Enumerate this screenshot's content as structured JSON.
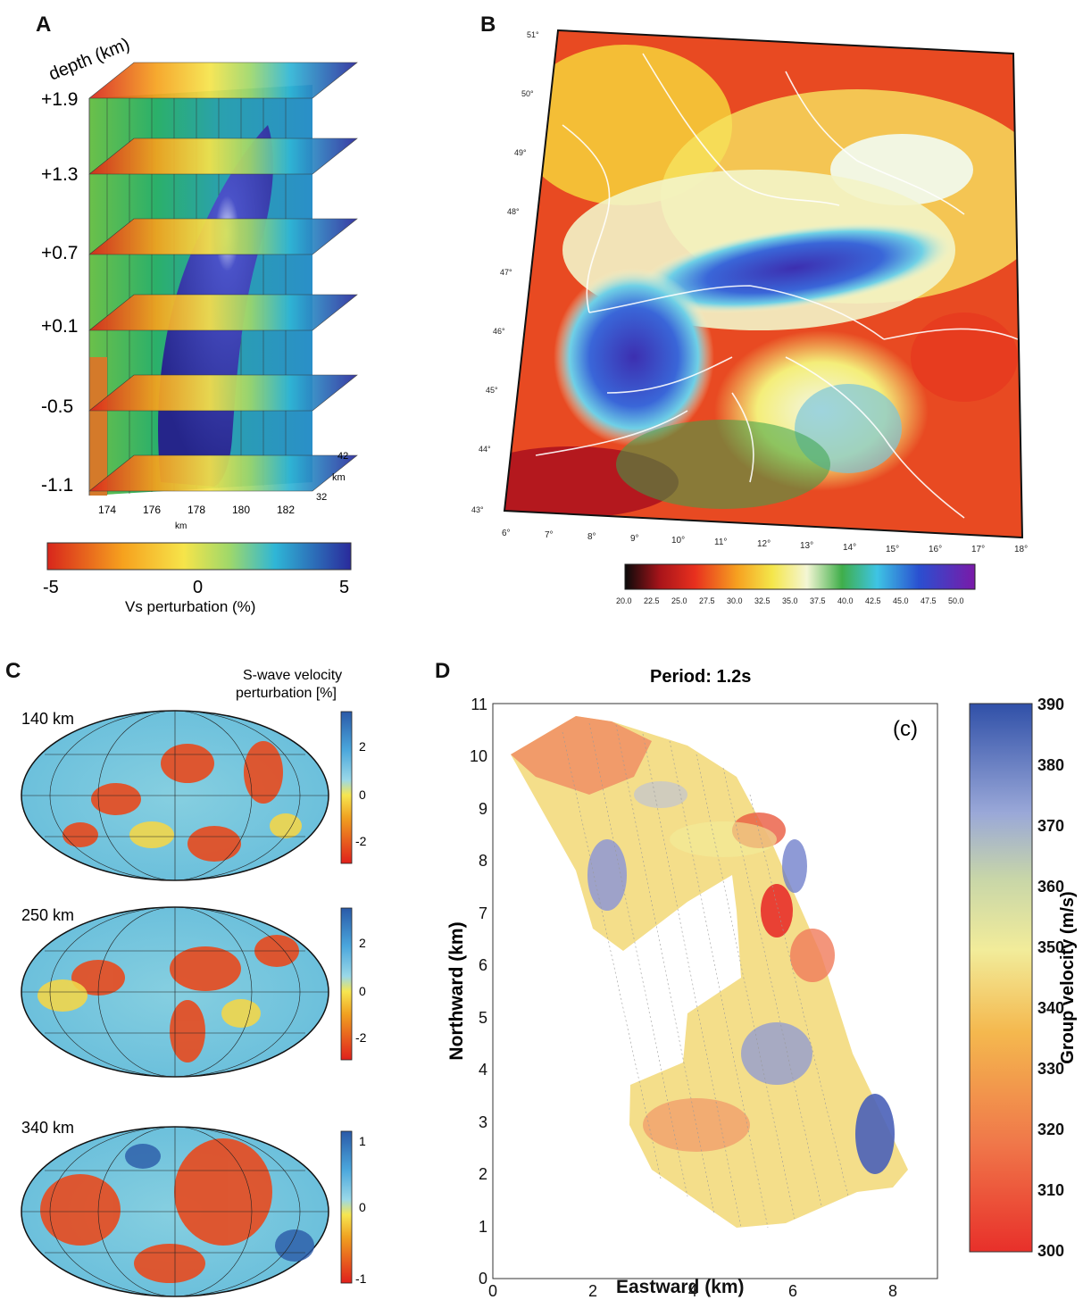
{
  "panels": {
    "A": {
      "letter": "A",
      "depth_title": "depth (km)",
      "depth_labels": [
        "+1.9",
        "+1.3",
        "+0.7",
        "+0.1",
        "-0.5",
        "-1.1"
      ],
      "x_ticks": [
        "174",
        "176",
        "178",
        "180",
        "182"
      ],
      "x_unit": "km",
      "y_ticks": [
        "42",
        "km",
        "32"
      ],
      "colorbar_ticks": [
        "-5",
        "0",
        "5"
      ],
      "colorbar_label": "Vs perturbation (%)",
      "colors": {
        "neg": "#e8201c",
        "mid": "#f4e24a",
        "pos": "#2a2a9c"
      }
    },
    "B": {
      "letter": "B",
      "lat_labels": [
        "51°",
        "50°",
        "49°",
        "48°",
        "47°",
        "46°",
        "45°",
        "44°",
        "43°"
      ],
      "lon_labels": [
        "6°",
        "7°",
        "8°",
        "9°",
        "10°",
        "11°",
        "12°",
        "13°",
        "14°",
        "15°",
        "16°",
        "17°",
        "18°"
      ],
      "colorbar_ticks": [
        "20.0",
        "22.5",
        "25.0",
        "27.5",
        "30.0",
        "32.5",
        "35.0",
        "37.5",
        "40.0",
        "42.5",
        "45.0",
        "47.5",
        "50.0"
      ]
    },
    "C": {
      "letter": "C",
      "title": "S-wave velocity\nperturbation [%]",
      "title_line1": "S-wave velocity",
      "title_line2": "perturbation [%]",
      "maps": [
        {
          "depth": "140 km",
          "ticks": [
            "2",
            "0",
            "-2"
          ]
        },
        {
          "depth": "250 km",
          "ticks": [
            "2",
            "0",
            "-2"
          ]
        },
        {
          "depth": "340 km",
          "ticks": [
            "1",
            "0",
            "-1"
          ]
        }
      ]
    },
    "D": {
      "letter": "D",
      "title": "Period: 1.2s",
      "inset_label": "(c)",
      "xlabel": "Eastward (km)",
      "ylabel": "Northward (km)",
      "x_ticks": [
        "0",
        "2",
        "4",
        "6",
        "8"
      ],
      "y_ticks": [
        "0",
        "1",
        "2",
        "3",
        "4",
        "5",
        "6",
        "7",
        "8",
        "9",
        "10",
        "11"
      ],
      "colorbar_label": "Group velocity (m/s)",
      "colorbar_ticks": [
        "390",
        "380",
        "370",
        "360",
        "350",
        "340",
        "330",
        "320",
        "310",
        "300"
      ]
    }
  }
}
